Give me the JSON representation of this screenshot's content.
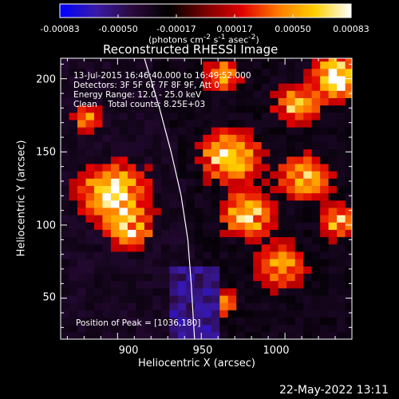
{
  "chart_data": {
    "type": "heatmap",
    "title": "Reconstructed RHESSI Image",
    "xlabel": "Heliocentric X (arcsec)",
    "ylabel": "Heliocentric Y (arcsec)",
    "xlim": [
      866,
      1040
    ],
    "ylim": [
      22,
      214
    ],
    "x_ticks": [
      900,
      950,
      1000
    ],
    "y_ticks": [
      50,
      100,
      150,
      200
    ],
    "colorbar": {
      "ticks": [
        "-0.00083",
        "-0.00050",
        "-0.00017",
        "0.00017",
        "0.00050",
        "0.00083"
      ],
      "range": [
        -0.00083,
        0.00083
      ],
      "units": "(photons cm<sup>-2</sup> s<sup>-1</sup> asec<sup>-2</sup>)",
      "colormap": [
        "#0000ff",
        "#3a1aa8",
        "#2a0a3a",
        "#000000",
        "#7a0000",
        "#e00000",
        "#ff7a00",
        "#ffd000",
        "#ffffff"
      ]
    },
    "annotations": {
      "time": "13-Jul-2015 16:46:40.000 to 16:49:52.000",
      "detectors": "Detectors: 3F 5F 6F 7F 8F 9F, Att 0",
      "energy": "Energy Range: 12.0 - 25.0 keV",
      "clean": "Clean    Total counts: 8.25E+03",
      "peak": "Position of Peak = [1036,180]"
    },
    "limb_curve": {
      "x": [
        916,
        925,
        932,
        938,
        942,
        944,
        946
      ],
      "y": [
        214,
        180,
        150,
        120,
        90,
        60,
        22
      ]
    },
    "grid": false
  },
  "footer": {
    "date": "22-May-2022 13:11"
  }
}
